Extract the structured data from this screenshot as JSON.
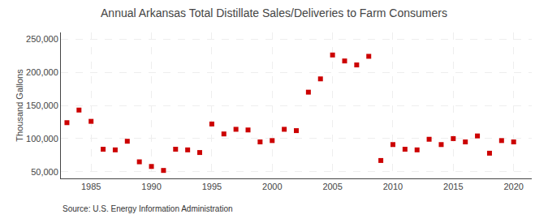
{
  "chart_data": {
    "type": "scatter",
    "title": "Annual Arkansas Total Distillate Sales/Deliveries to Farm Consumers",
    "ylabel": "Thousand Gallons",
    "annotations": [
      "Source: U.S. Energy Information Administration"
    ],
    "x": [
      1983,
      1984,
      1985,
      1986,
      1987,
      1988,
      1989,
      1990,
      1991,
      1992,
      1993,
      1994,
      1995,
      1996,
      1997,
      1998,
      1999,
      2000,
      2001,
      2002,
      2003,
      2004,
      2005,
      2006,
      2007,
      2008,
      2009,
      2010,
      2011,
      2012,
      2013,
      2014,
      2015,
      2016,
      2017,
      2018,
      2019,
      2020
    ],
    "values": [
      124000,
      143000,
      126000,
      84000,
      83000,
      96000,
      65000,
      58000,
      52000,
      84000,
      83000,
      79000,
      122000,
      107000,
      114000,
      113000,
      95000,
      97000,
      114000,
      112000,
      170000,
      190000,
      226000,
      217000,
      211000,
      224000,
      67000,
      91000,
      84000,
      83000,
      99000,
      91000,
      100000,
      95000,
      104000,
      78000,
      97000,
      95000
    ],
    "color": "#cc0000",
    "marker": "square",
    "xlim": [
      1982.5,
      2021.5
    ],
    "ylim": [
      40000,
      260000
    ],
    "xticks": [
      1985,
      1990,
      1995,
      2000,
      2005,
      2010,
      2015,
      2020
    ],
    "yticks": [
      {
        "value": 50000,
        "label": "50,000"
      },
      {
        "value": 100000,
        "label": "100,000"
      },
      {
        "value": 150000,
        "label": "150,000"
      },
      {
        "value": 200000,
        "label": "200,000"
      },
      {
        "value": 250000,
        "label": "250,000"
      }
    ],
    "grid": true
  }
}
